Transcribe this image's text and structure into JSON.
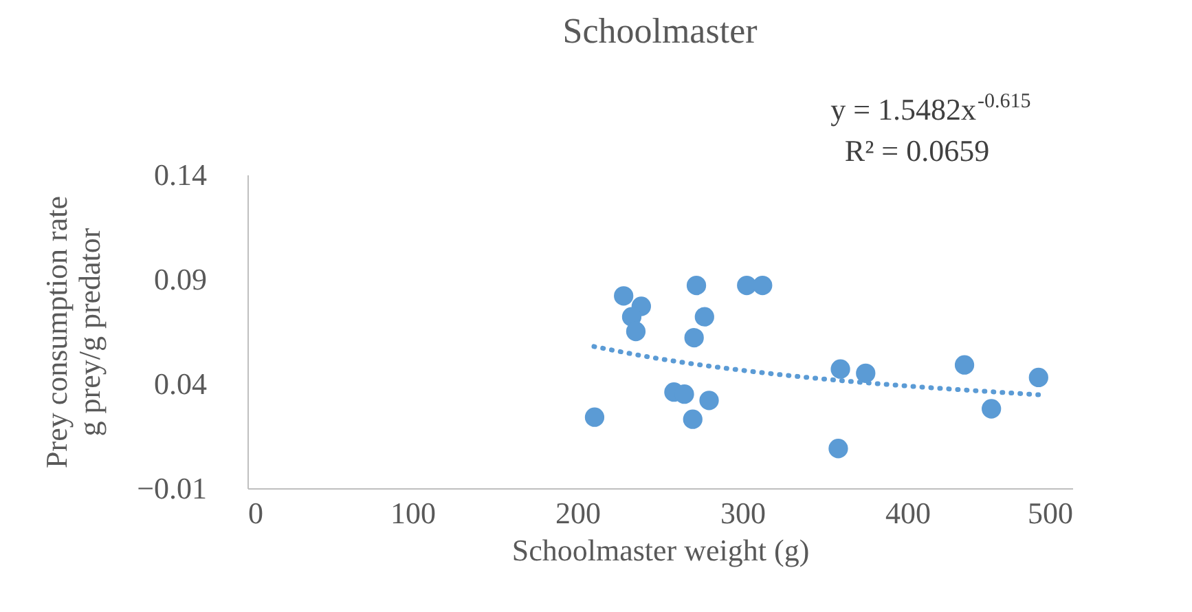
{
  "chart_data": {
    "type": "scatter",
    "title": "Schoolmaster",
    "xlabel": "Schoolmaster weight (g)",
    "ylabel": "Prey consumption rate\ng prey/g predator",
    "annotations": [
      "y = 1.5482x$^{-0.615}$",
      "R² = 0.0659"
    ],
    "xlim": [
      0,
      500
    ],
    "xticks": [
      0,
      100,
      200,
      300,
      400,
      500
    ],
    "ylim": [
      -0.01,
      0.14
    ],
    "yticks": [
      -0.01,
      0.04,
      0.09,
      0.14
    ],
    "grid": false,
    "series": [
      {
        "marker": "circle",
        "color": "#5b9bd5",
        "x": [
          210.4,
          228,
          238.7,
          232.9,
          235.4,
          258.5,
          264.8,
          272.1,
          270.7,
          277,
          269.9,
          279.8,
          302.6,
          312.2,
          359.4,
          358.1,
          374.7,
          434.6,
          450.9,
          479.5
        ],
        "values": [
          0.024,
          0.082,
          0.077,
          0.072,
          0.065,
          0.036,
          0.035,
          0.087,
          0.062,
          0.072,
          0.023,
          0.032,
          0.087,
          0.087,
          0.047,
          0.009,
          0.045,
          0.049,
          0.028,
          0.043
        ]
      },
      {
        "type": "line",
        "line_style": "dotted",
        "marker": "none",
        "color": "#5b9bd5",
        "x": [
          210,
          250,
          300,
          350,
          400,
          450,
          480
        ],
        "values": [
          0.0578,
          0.0519,
          0.0464,
          0.0422,
          0.0389,
          0.0362,
          0.0347
        ]
      }
    ]
  }
}
